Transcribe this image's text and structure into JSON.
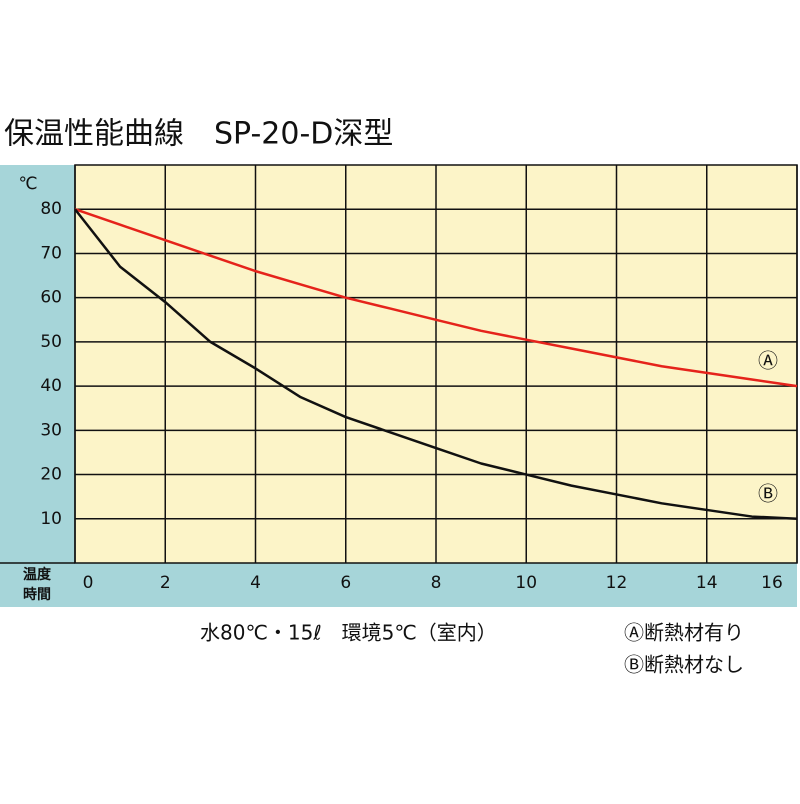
{
  "chart_data": {
    "type": "line",
    "title": "保温性能曲線　SP-20-D深型",
    "y_unit": "℃",
    "x_label": [
      "温度",
      "時間"
    ],
    "x": [
      0,
      1,
      2,
      3,
      4,
      5,
      6,
      7,
      8,
      9,
      10,
      11,
      12,
      13,
      14,
      15,
      16
    ],
    "xlim": [
      0,
      16
    ],
    "xticks": [
      0,
      2,
      4,
      6,
      8,
      10,
      12,
      14,
      16
    ],
    "ylim": [
      0,
      90
    ],
    "yticks": [
      10,
      20,
      30,
      40,
      50,
      60,
      70,
      80
    ],
    "grid": true,
    "series": [
      {
        "name": "Ⓐ",
        "color": "#e5231b",
        "values": [
          80,
          76.5,
          73,
          69.5,
          66,
          63,
          60,
          57.5,
          55,
          52.5,
          50.5,
          48.5,
          46.5,
          44.5,
          43,
          41.5,
          40
        ]
      },
      {
        "name": "Ⓑ",
        "color": "#111111",
        "values": [
          80,
          67,
          59,
          50,
          44,
          37.5,
          33,
          29.5,
          26,
          22.5,
          20,
          17.5,
          15.5,
          13.5,
          12,
          10.5,
          10
        ]
      }
    ],
    "notes": [
      "水80℃・15ℓ　環境5℃（室内）",
      "Ⓐ断熱材有り",
      "Ⓑ断熱材なし"
    ]
  }
}
